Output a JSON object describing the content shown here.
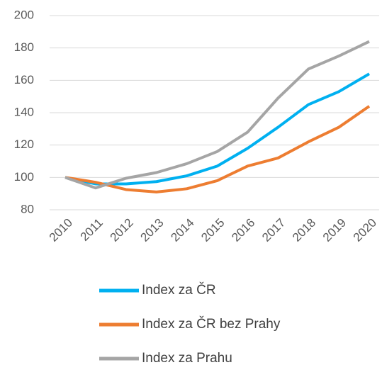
{
  "chart_data": {
    "type": "line",
    "categories": [
      "2010",
      "2011",
      "2012",
      "2013",
      "2014",
      "2015",
      "2016",
      "2017",
      "2018",
      "2019",
      "2020"
    ],
    "series": [
      {
        "name": "Index za ČR",
        "color": "#00b0f0",
        "values": [
          100,
          96,
          96,
          97.4,
          101,
          107,
          118,
          131,
          145,
          153,
          164
        ]
      },
      {
        "name": "Index za ČR bez Prahy",
        "color": "#ed7d31",
        "values": [
          100,
          97,
          92.5,
          91,
          93,
          98,
          107,
          112,
          122,
          131,
          144
        ]
      },
      {
        "name": "Index za Prahu",
        "color": "#a5a5a5",
        "values": [
          100,
          93.5,
          99.5,
          103,
          108.5,
          116,
          128,
          149,
          167,
          175,
          184
        ]
      }
    ],
    "ylim": [
      80,
      200
    ],
    "yticks": [
      80,
      100,
      120,
      140,
      160,
      180,
      200
    ],
    "grid": true,
    "legend": "bottom"
  }
}
